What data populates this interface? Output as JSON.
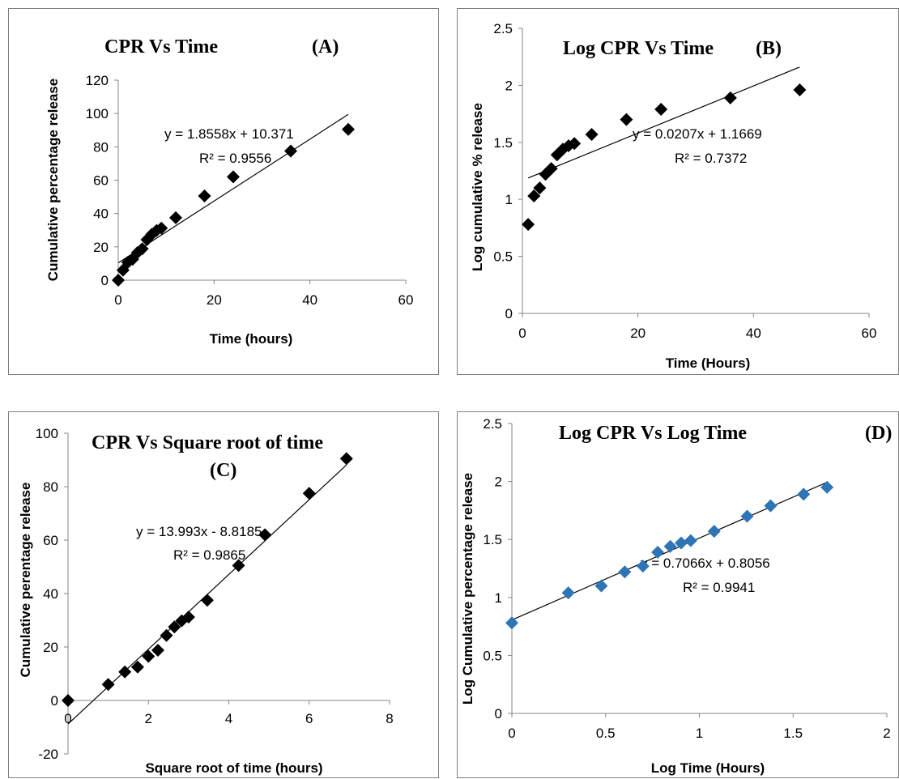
{
  "chart_data": [
    {
      "type": "scatter",
      "title": "CPR Vs Time",
      "panel_label": "(A)",
      "xlabel": "Time (hours)",
      "ylabel": "Cumulative percentage release",
      "xlim": [
        0,
        60
      ],
      "ylim": [
        0,
        120
      ],
      "xticks": [
        "0",
        "20",
        "40",
        "60"
      ],
      "yticks": [
        "0",
        "20",
        "40",
        "60",
        "80",
        "100",
        "120"
      ],
      "marker_color": "#000000",
      "series": [
        {
          "x": [
            0,
            1,
            2,
            3,
            4,
            5,
            6,
            7,
            8,
            9,
            12,
            18,
            24,
            36,
            48
          ],
          "y": [
            0,
            6,
            10.7,
            12.5,
            16.5,
            18.8,
            24.3,
            27.5,
            29.8,
            31.2,
            37.5,
            50.5,
            62,
            77.5,
            90.5
          ]
        }
      ],
      "trendline": {
        "slope": 1.8558,
        "intercept": 10.371
      },
      "equation": "y = 1.8558x + 10.371",
      "r2": "R² = 0.9556",
      "grid": false
    },
    {
      "type": "scatter",
      "title": "Log CPR Vs Time",
      "panel_label": "(B)",
      "xlabel": "Time (Hours)",
      "ylabel": "Log cumulative % release",
      "xlim": [
        0,
        60
      ],
      "ylim": [
        0,
        2.5
      ],
      "xticks": [
        "0",
        "20",
        "40",
        "60"
      ],
      "yticks": [
        "0",
        "0.5",
        "1",
        "1.5",
        "2",
        "2.5"
      ],
      "marker_color": "#000000",
      "series": [
        {
          "x": [
            1,
            2,
            3,
            4,
            5,
            6,
            7,
            8,
            9,
            12,
            18,
            24,
            36,
            48
          ],
          "y": [
            0.78,
            1.03,
            1.1,
            1.22,
            1.27,
            1.39,
            1.44,
            1.47,
            1.49,
            1.57,
            1.7,
            1.79,
            1.89,
            1.96
          ]
        }
      ],
      "trendline": {
        "slope": 0.0207,
        "intercept": 1.1669
      },
      "equation": "y = 0.0207x + 1.1669",
      "r2": "R² = 0.7372",
      "grid": false
    },
    {
      "type": "scatter",
      "title": "CPR Vs Square root of time",
      "panel_label": "(C)",
      "xlabel": "Square root of time (hours)",
      "ylabel": "Cumulative perentage release",
      "xlim": [
        0,
        8
      ],
      "ylim": [
        -20,
        100
      ],
      "xticks": [
        "0",
        "2",
        "4",
        "6",
        "8"
      ],
      "yticks": [
        "-20",
        "0",
        "20",
        "40",
        "60",
        "80",
        "100"
      ],
      "marker_color": "#000000",
      "series": [
        {
          "x": [
            0,
            1,
            1.414,
            1.732,
            2,
            2.236,
            2.449,
            2.646,
            2.828,
            3,
            3.464,
            4.243,
            4.899,
            6,
            6.928
          ],
          "y": [
            0,
            6,
            10.7,
            12.5,
            16.5,
            18.8,
            24.3,
            27.5,
            29.8,
            31.2,
            37.5,
            50.5,
            62,
            77.5,
            90.5
          ]
        }
      ],
      "trendline": {
        "slope": 13.993,
        "intercept": -8.8185
      },
      "equation": "y = 13.993x - 8.8185",
      "r2": "R² = 0.9865",
      "grid": false
    },
    {
      "type": "scatter",
      "title": "Log CPR Vs Log Time",
      "panel_label": "(D)",
      "xlabel": "Log Time (Hours)",
      "ylabel": "Log Cumulative percentage release",
      "xlim": [
        0,
        2
      ],
      "ylim": [
        0,
        2.5
      ],
      "xticks": [
        "0",
        "0.5",
        "1",
        "1.5",
        "2"
      ],
      "yticks": [
        "0",
        "0.5",
        "1",
        "1.5",
        "2",
        "2.5"
      ],
      "marker_color": "#2e75b6",
      "series": [
        {
          "x": [
            0,
            0.301,
            0.477,
            0.602,
            0.699,
            0.778,
            0.845,
            0.903,
            0.954,
            1.079,
            1.255,
            1.38,
            1.556,
            1.681
          ],
          "y": [
            0.78,
            1.04,
            1.1,
            1.22,
            1.27,
            1.39,
            1.44,
            1.47,
            1.49,
            1.57,
            1.7,
            1.79,
            1.89,
            1.95
          ]
        }
      ],
      "trendline": {
        "slope": 0.7066,
        "intercept": 0.8056
      },
      "equation": "y = 0.7066x + 0.8056",
      "r2": "R² = 0.9941",
      "grid": false
    }
  ]
}
